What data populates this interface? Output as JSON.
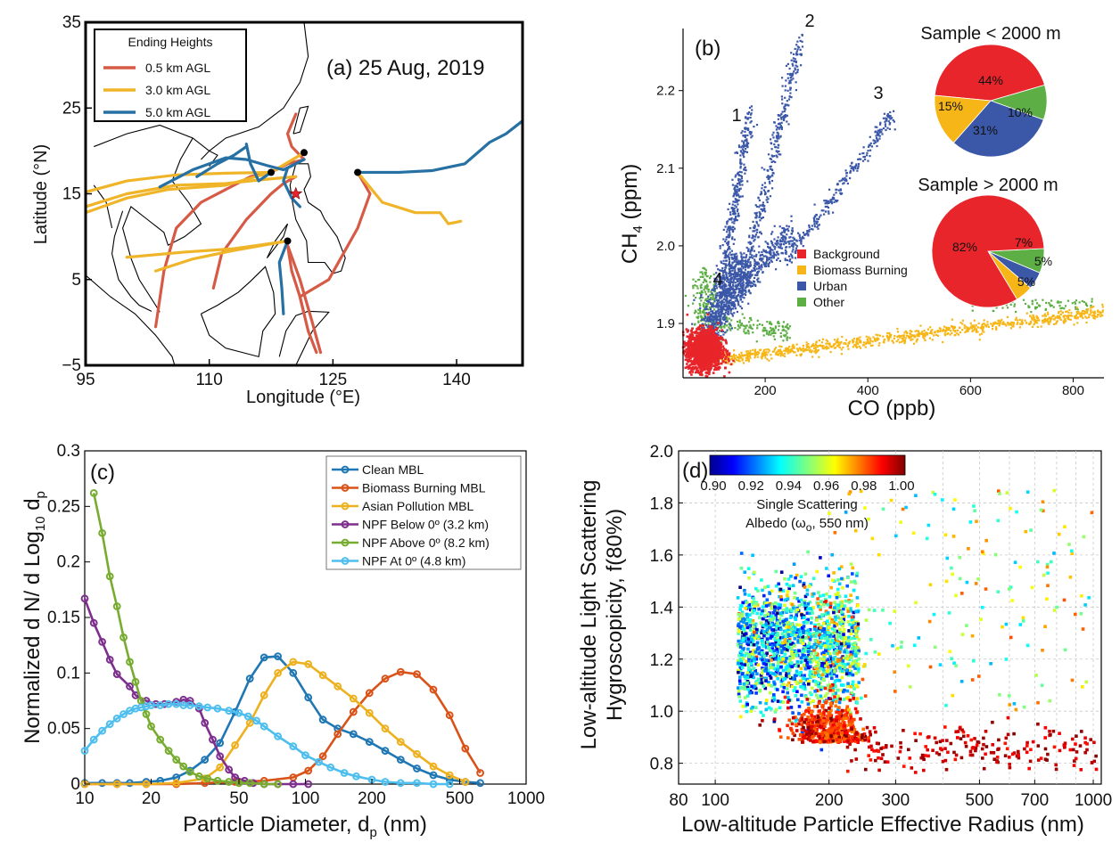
{
  "chart_data": [
    {
      "id": "a",
      "type": "line",
      "panel_label": "(a) 25 Aug, 2019",
      "xlabel": "Longitude (°E)",
      "ylabel": "Latitude (°N)",
      "xlim": [
        95,
        148
      ],
      "ylim": [
        -5,
        35
      ],
      "xticks": [
        "95",
        "110",
        "125",
        "140"
      ],
      "yticks": [
        "−5",
        "5",
        "15",
        "25",
        "35"
      ],
      "legend_title": "Ending Heights",
      "legend_position": "top-left",
      "series": [
        {
          "name": "0.5 km AGL",
          "color": "#d65a45",
          "paths": [
            [
              [
                103.5,
                -0.5
              ],
              [
                104.5,
                6
              ],
              [
                106,
                11
              ],
              [
                109,
                14
              ],
              [
                112,
                15.5
              ],
              [
                115,
                17
              ],
              [
                117.5,
                17.5
              ],
              [
                119.5,
                18.5
              ],
              [
                121.5,
                19
              ]
            ],
            [
              [
                121.5,
                19
              ],
              [
                120,
                20.5
              ],
              [
                119.5,
                22
              ],
              [
                120.5,
                24.3
              ]
            ],
            [
              [
                110.5,
                4
              ],
              [
                111.5,
                8
              ],
              [
                114.5,
                12
              ],
              [
                117.5,
                15
              ],
              [
                119,
                16.2
              ],
              [
                120.5,
                17
              ]
            ],
            [
              [
                119.5,
                9
              ],
              [
                121,
                5
              ],
              [
                122.5,
                0
              ],
              [
                123.5,
                -3.5
              ]
            ],
            [
              [
                119.5,
                9
              ],
              [
                120,
                6
              ],
              [
                121,
                3
              ],
              [
                121.5,
                1
              ]
            ],
            [
              [
                128,
                17.5
              ],
              [
                129.5,
                15
              ],
              [
                128,
                11
              ],
              [
                124.5,
                5
              ],
              [
                121,
                3
              ],
              [
                122,
                -1
              ],
              [
                123,
                -3.5
              ]
            ]
          ]
        },
        {
          "name": "3.0 km AGL",
          "color": "#f0b429",
          "paths": [
            [
              [
                95,
                12.8
              ],
              [
                100,
                14.5
              ],
              [
                105,
                15.5
              ],
              [
                112,
                16
              ],
              [
                117.5,
                17.5
              ],
              [
                121,
                19.5
              ]
            ],
            [
              [
                95,
                15.2
              ],
              [
                100,
                16.5
              ],
              [
                106,
                17.2
              ],
              [
                112,
                17.4
              ],
              [
                117.5,
                17.5
              ]
            ],
            [
              [
                95,
                13.5
              ],
              [
                100,
                15
              ],
              [
                106,
                16
              ],
              [
                112,
                16.2
              ],
              [
                117,
                16.7
              ],
              [
                120.5,
                17
              ]
            ],
            [
              [
                100,
                7.6
              ],
              [
                107,
                8.2
              ],
              [
                113,
                8.6
              ],
              [
                116,
                9
              ],
              [
                119.5,
                9.5
              ]
            ],
            [
              [
                103.5,
                6
              ],
              [
                108,
                7.4
              ],
              [
                113,
                8.4
              ],
              [
                119.5,
                9.5
              ]
            ],
            [
              [
                128,
                17.5
              ],
              [
                131,
                14
              ],
              [
                135,
                12.8
              ],
              [
                138,
                12.8
              ],
              [
                139,
                11.5
              ],
              [
                140.5,
                11.8
              ]
            ]
          ]
        },
        {
          "name": "5.0 km AGL",
          "color": "#2670a3",
          "paths": [
            [
              [
                104,
                15.8
              ],
              [
                108,
                17.8
              ],
              [
                112,
                19.2
              ],
              [
                114.5,
                19
              ],
              [
                117,
                18.3
              ],
              [
                119,
                17.8
              ],
              [
                121.5,
                19
              ]
            ],
            [
              [
                108.5,
                17
              ],
              [
                111,
                18.5
              ],
              [
                113,
                19.5
              ],
              [
                114.5,
                20.5
              ]
            ],
            [
              [
                114.5,
                20.8
              ],
              [
                115,
                18.5
              ],
              [
                116,
                16.5
              ],
              [
                117.5,
                17.5
              ]
            ],
            [
              [
                121.5,
                19
              ],
              [
                119.5,
                18
              ],
              [
                119,
                16.5
              ],
              [
                120,
                14.5
              ],
              [
                121,
                13.5
              ]
            ],
            [
              [
                119.5,
                9.5
              ],
              [
                118.5,
                7
              ],
              [
                118.8,
                4
              ],
              [
                119,
                1
              ]
            ],
            [
              [
                128,
                17.5
              ],
              [
                133,
                17.5
              ],
              [
                137,
                17.7
              ],
              [
                141,
                18.5
              ],
              [
                144,
                21
              ],
              [
                146,
                22
              ],
              [
                148,
                23.5
              ]
            ]
          ]
        }
      ],
      "markers": [
        [
          117.5,
          17.5
        ],
        [
          121.5,
          19.8
        ],
        [
          119.5,
          9.5
        ],
        [
          128,
          17.5
        ]
      ],
      "star": [
        120.5,
        15
      ]
    },
    {
      "id": "b",
      "type": "scatter",
      "panel_label": "(b)",
      "xlabel": "CO (ppb)",
      "ylabel": "CH4 (ppm)",
      "xlim": [
        40,
        860
      ],
      "ylim": [
        1.83,
        2.28
      ],
      "xticks": [
        200,
        400,
        600,
        800
      ],
      "yticks": [
        "1.9",
        "2.0",
        "2.1",
        "2.2"
      ],
      "legend_position": "center",
      "series": [
        {
          "name": "Background",
          "color": "#e8252a"
        },
        {
          "name": "Biomass Burning",
          "color": "#f7b617"
        },
        {
          "name": "Urban",
          "color": "#3b57a8"
        },
        {
          "name": "Other",
          "color": "#5daf45"
        }
      ],
      "annotations": [
        "1",
        "2",
        "3",
        "4"
      ],
      "pies": [
        {
          "title": "Sample < 2000 m",
          "slices": [
            {
              "name": "Background",
              "value": 44,
              "label": "44%"
            },
            {
              "name": "Other",
              "value": 10,
              "label": "10%"
            },
            {
              "name": "Urban",
              "value": 31,
              "label": "31%"
            },
            {
              "name": "Biomass Burning",
              "value": 15,
              "label": "15%"
            }
          ]
        },
        {
          "title": "Sample > 2000 m",
          "slices": [
            {
              "name": "Background",
              "value": 82,
              "label": "82%"
            },
            {
              "name": "Other",
              "value": 7,
              "label": "7%"
            },
            {
              "name": "Urban",
              "value": 5,
              "label": "5%"
            },
            {
              "name": "Biomass Burning",
              "value": 5,
              "label": "5%"
            }
          ]
        }
      ]
    },
    {
      "id": "c",
      "type": "line",
      "panel_label": "(c)",
      "xlabel": "Particle Diameter, dp (nm)",
      "ylabel": "Normalized d N/ d Log10 dp",
      "xscale": "log",
      "xlim": [
        10,
        1000
      ],
      "ylim": [
        0,
        0.3
      ],
      "xticks": [
        "10",
        "20",
        "50",
        "100",
        "200",
        "500",
        "1000"
      ],
      "yticks": [
        "0",
        "0.05",
        "0.1",
        "0.15",
        "0.2",
        "0.25",
        "0.3"
      ],
      "legend_position": "top-right",
      "series": [
        {
          "name": "Clean MBL",
          "color": "#1f77b4",
          "x": [
            10,
            12,
            14,
            16,
            19,
            22,
            26,
            30,
            35,
            41,
            48,
            56,
            65,
            75,
            88,
            103,
            120,
            140,
            165,
            195,
            230,
            270,
            320,
            380,
            450,
            530,
            620
          ],
          "y": [
            0.001,
            0.001,
            0.001,
            0.001,
            0.002,
            0.003,
            0.006,
            0.012,
            0.022,
            0.037,
            0.065,
            0.095,
            0.114,
            0.115,
            0.1,
            0.078,
            0.058,
            0.05,
            0.045,
            0.038,
            0.03,
            0.022,
            0.014,
            0.008,
            0.004,
            0.002,
            0.001
          ]
        },
        {
          "name": "Biomass Burning  MBL",
          "color": "#d95319",
          "x": [
            10,
            14,
            19,
            26,
            35,
            48,
            65,
            88,
            103,
            120,
            140,
            165,
            195,
            230,
            270,
            320,
            380,
            450,
            530,
            620
          ],
          "y": [
            0,
            0,
            0,
            0,
            0.001,
            0.002,
            0.003,
            0.006,
            0.012,
            0.025,
            0.045,
            0.065,
            0.082,
            0.095,
            0.101,
            0.099,
            0.085,
            0.062,
            0.032,
            0.01
          ]
        },
        {
          "name": "Asian Pollution MBL",
          "color": "#edb120",
          "x": [
            10,
            14,
            19,
            26,
            35,
            41,
            48,
            56,
            65,
            75,
            88,
            103,
            120,
            140,
            165,
            195,
            230,
            270,
            320,
            380,
            450,
            530
          ],
          "y": [
            0,
            0,
            0,
            0.001,
            0.005,
            0.015,
            0.035,
            0.055,
            0.08,
            0.1,
            0.11,
            0.108,
            0.098,
            0.088,
            0.077,
            0.064,
            0.05,
            0.038,
            0.027,
            0.016,
            0.008,
            0.002
          ]
        },
        {
          "name": "NPF Below 0º (3.2 km)",
          "color": "#7e2f8e",
          "x": [
            10,
            11,
            12,
            13,
            14,
            16,
            17,
            19,
            21,
            23,
            26,
            28,
            30,
            33,
            35,
            38,
            41,
            45,
            48,
            53,
            58,
            65,
            75,
            88,
            103
          ],
          "y": [
            0.167,
            0.145,
            0.128,
            0.112,
            0.099,
            0.088,
            0.08,
            0.075,
            0.072,
            0.072,
            0.074,
            0.076,
            0.075,
            0.068,
            0.055,
            0.04,
            0.025,
            0.013,
            0.006,
            0.003,
            0.001,
            0,
            0,
            0,
            0
          ]
        },
        {
          "name": "NPF Above 0º (8.2 km)",
          "color": "#77ac30",
          "x": [
            11,
            12,
            13,
            14,
            15,
            16,
            17,
            18,
            19,
            20,
            22,
            24,
            26,
            28,
            30,
            33,
            36,
            40,
            45,
            50,
            56,
            65,
            75
          ],
          "y": [
            0.262,
            0.226,
            0.187,
            0.16,
            0.132,
            0.11,
            0.092,
            0.075,
            0.063,
            0.052,
            0.04,
            0.03,
            0.022,
            0.016,
            0.011,
            0.007,
            0.005,
            0.003,
            0.002,
            0.001,
            0.001,
            0,
            0
          ]
        },
        {
          "name": "NPF At 0º (4.8 km)",
          "color": "#4dbeee",
          "x": [
            10,
            11,
            12,
            13,
            14,
            15,
            16,
            17,
            18,
            19,
            20,
            22,
            24,
            26,
            28,
            30,
            33,
            36,
            40,
            45,
            50,
            55,
            60,
            65,
            75,
            88,
            100,
            115,
            130,
            150,
            170,
            200,
            230,
            270,
            320,
            380,
            450
          ],
          "y": [
            0.03,
            0.04,
            0.048,
            0.054,
            0.059,
            0.063,
            0.066,
            0.068,
            0.069,
            0.07,
            0.071,
            0.071,
            0.072,
            0.072,
            0.071,
            0.071,
            0.07,
            0.069,
            0.068,
            0.066,
            0.064,
            0.061,
            0.057,
            0.052,
            0.043,
            0.034,
            0.026,
            0.02,
            0.015,
            0.01,
            0.007,
            0.004,
            0.002,
            0.001,
            0.001,
            0,
            0
          ]
        }
      ]
    },
    {
      "id": "d",
      "type": "scatter",
      "panel_label": "(d)",
      "xlabel": "Low-altitude Particle Effective Radius (nm)",
      "ylabel": "Low-altitude Light Scattering Hygroscopicity, f(80%)",
      "xscale": "log",
      "xlim": [
        80,
        1050
      ],
      "ylim": [
        0.72,
        2.0
      ],
      "xticks": [
        "80",
        "100",
        "200",
        "300",
        "500",
        "700",
        "1000"
      ],
      "yticks": [
        "0.8",
        "1.0",
        "1.2",
        "1.4",
        "1.6",
        "1.8",
        "2.0"
      ],
      "colorbar_label": "Single Scattering Albedo (ωo, 550 nm)",
      "colorbar_range": [
        0.9,
        1.0
      ],
      "colorbar_ticks": [
        "0.90",
        "0.92",
        "0.94",
        "0.96",
        "0.98",
        "1.00"
      ],
      "grid": true
    }
  ]
}
